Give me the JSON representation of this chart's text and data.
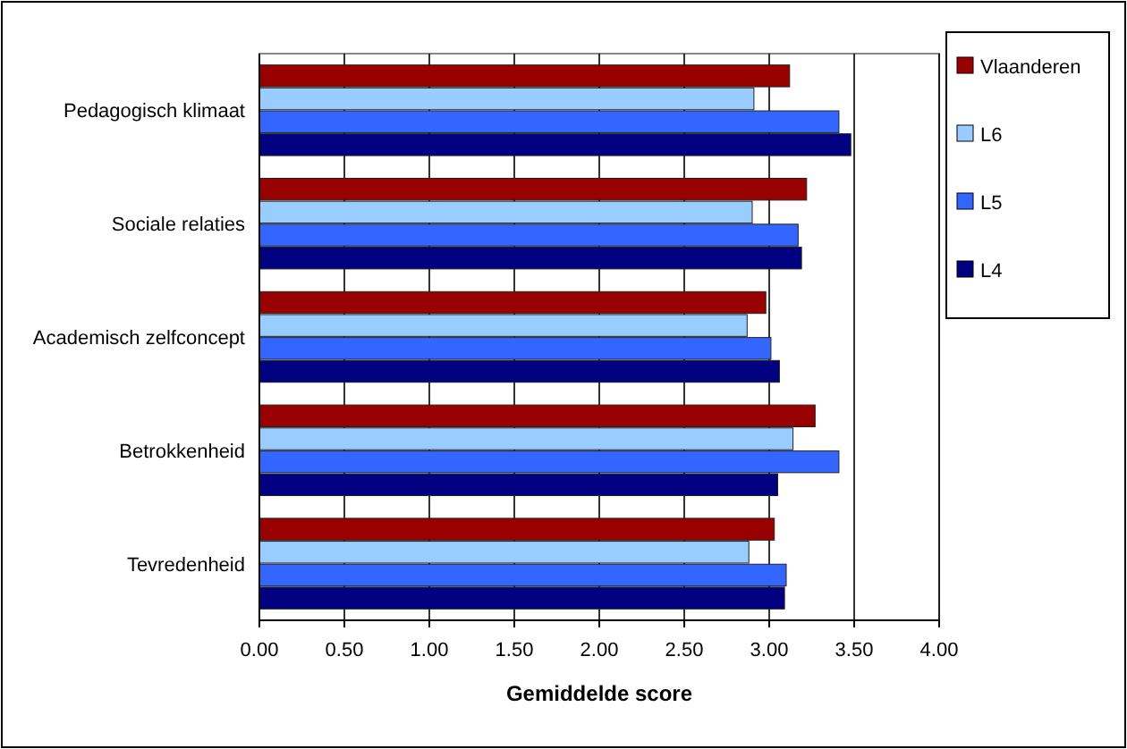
{
  "chart_data": {
    "type": "bar",
    "orientation": "horizontal",
    "xlabel": "Gemiddelde score",
    "categories": [
      "Pedagogisch klimaat",
      "Sociale relaties",
      "Academisch zelfconcept",
      "Betrokkenheid",
      "Tevredenheid"
    ],
    "series": [
      {
        "name": "Vlaanderen",
        "color": "#990000",
        "values": [
          3.12,
          3.22,
          2.98,
          3.27,
          3.03
        ]
      },
      {
        "name": "L6",
        "color": "#99ccff",
        "values": [
          2.91,
          2.9,
          2.87,
          3.14,
          2.88
        ]
      },
      {
        "name": "L5",
        "color": "#3366ff",
        "values": [
          3.41,
          3.17,
          3.01,
          3.41,
          3.1
        ]
      },
      {
        "name": "L4",
        "color": "#000080",
        "values": [
          3.48,
          3.19,
          3.06,
          3.05,
          3.09
        ]
      }
    ],
    "xlim": [
      0,
      4
    ],
    "xticks": [
      {
        "value": 0,
        "label": "0.00"
      },
      {
        "value": 0.5,
        "label": "0.50"
      },
      {
        "value": 1,
        "label": "1.00"
      },
      {
        "value": 1.5,
        "label": "1.50"
      },
      {
        "value": 2,
        "label": "2.00"
      },
      {
        "value": 2.5,
        "label": "2.50"
      },
      {
        "value": 3,
        "label": "3.00"
      },
      {
        "value": 3.5,
        "label": "3.50"
      },
      {
        "value": 4,
        "label": "4.00"
      }
    ],
    "grid": "x",
    "legend": "top right"
  }
}
